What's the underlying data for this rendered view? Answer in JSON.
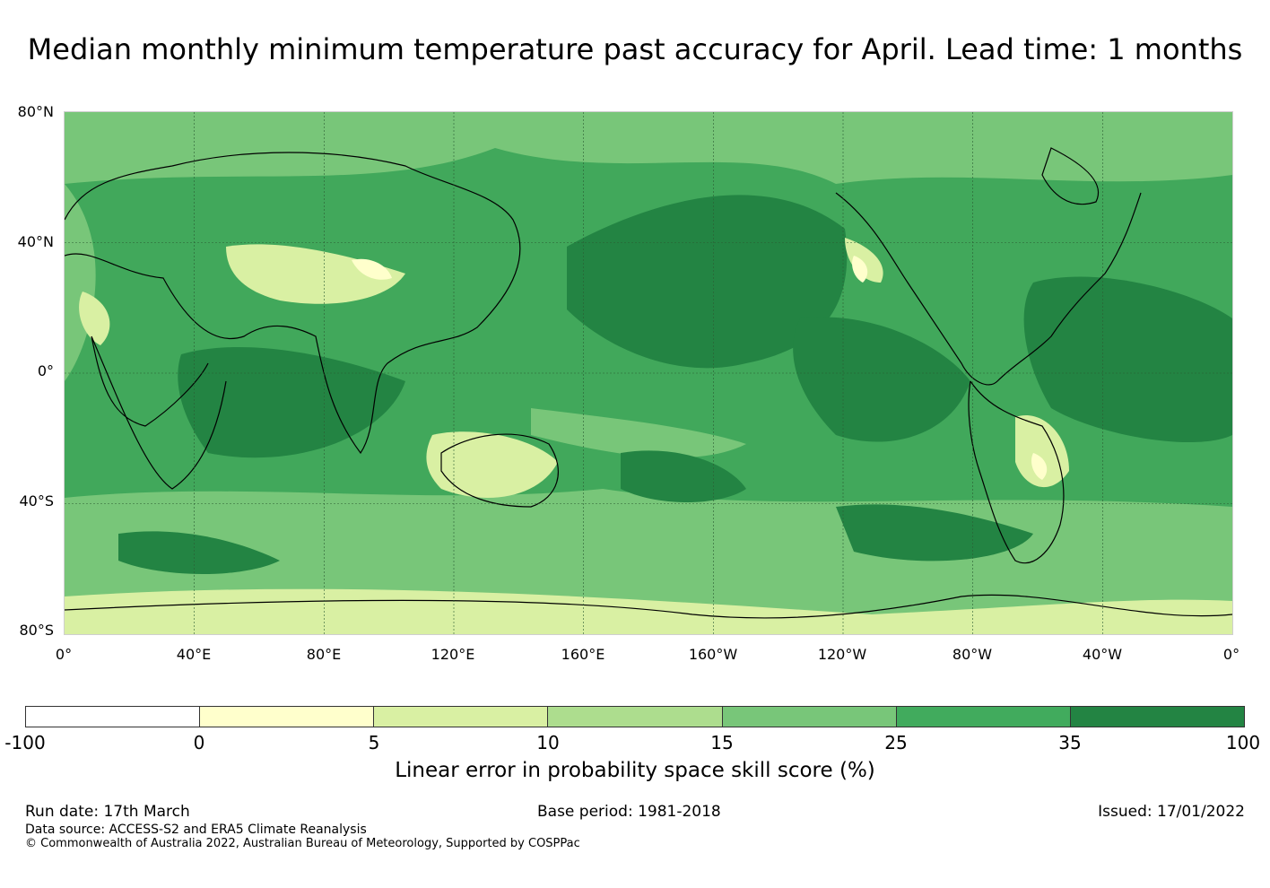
{
  "title": "Median monthly minimum temperature past accuracy for April. Lead time: 1 months",
  "map": {
    "lat_labels": [
      "80°N",
      "40°N",
      "0°",
      "40°S",
      "80°S"
    ],
    "lon_labels": [
      "0°",
      "40°E",
      "80°E",
      "120°E",
      "160°E",
      "160°W",
      "120°W",
      "80°W",
      "40°W",
      "0°"
    ],
    "colors": {
      "ocean_base": "#41a85b",
      "high_skill": "#238443",
      "mid_skill": "#78c679",
      "low_skill": "#addd8e",
      "lower_skill": "#d9f0a3",
      "lowest_skill": "#ffffcc",
      "coast": "#000000",
      "grid": "#2b5c33"
    }
  },
  "colorbar": {
    "ticks": [
      "-100",
      "0",
      "5",
      "10",
      "15",
      "25",
      "35",
      "100"
    ],
    "colors": [
      "#ffffff",
      "#ffffcc",
      "#d9f0a3",
      "#addd8e",
      "#78c679",
      "#41ab5d",
      "#238443"
    ],
    "label": "Linear error in probability space skill score (%)"
  },
  "footer": {
    "run_date": "Run date: 17th March",
    "base_period": "Base period: 1981-2018",
    "issued": "Issued: 17/01/2022",
    "data_source": "Data source: ACCESS-S2 and ERA5 Climate Reanalysis",
    "copyright": "© Commonwealth of Australia 2022, Australian Bureau of Meteorology, Supported by COSPPac"
  }
}
